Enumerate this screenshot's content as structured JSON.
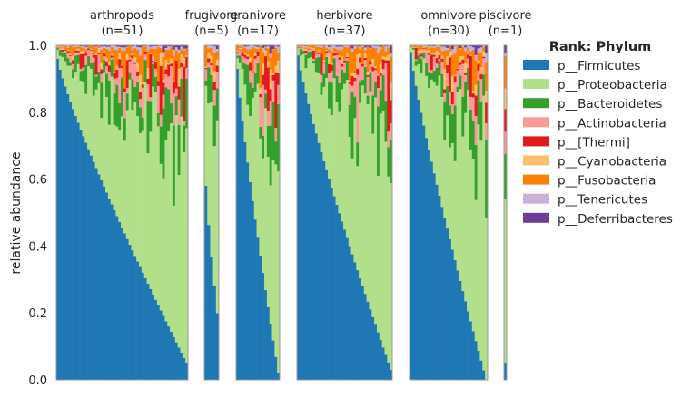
{
  "chart_data": {
    "type": "bar",
    "subtype": "stacked-100-percent, grouped panels",
    "ylabel": "relative abundance",
    "ylim": [
      0,
      1
    ],
    "yticks": [
      "0.0",
      "0.2",
      "0.4",
      "0.6",
      "0.8",
      "1.0"
    ],
    "legend": {
      "title": "Rank: Phylum",
      "placement": "right",
      "entries": [
        {
          "label": "p__Firmicutes",
          "color": "#1f77b4"
        },
        {
          "label": "p__Proteobacteria",
          "color": "#b2df8a"
        },
        {
          "label": "p__Bacteroidetes",
          "color": "#33a02c"
        },
        {
          "label": "p__Actinobacteria",
          "color": "#fb9a99"
        },
        {
          "label": "p__[Thermi]",
          "color": "#e31a1c"
        },
        {
          "label": "p__Cyanobacteria",
          "color": "#fdbf6f"
        },
        {
          "label": "p__Fusobacteria",
          "color": "#ff7f00"
        },
        {
          "label": "p__Tenericutes",
          "color": "#cab2d6"
        },
        {
          "label": "p__Deferribacteres",
          "color": "#6a3d9a"
        }
      ]
    },
    "groups": [
      {
        "name": "arthropods",
        "n_label": "(n=51)",
        "n": 51,
        "firmicutes_range": [
          0.96,
          0.05
        ]
      },
      {
        "name": "frugivore",
        "n_label": "(n=5)",
        "n": 5,
        "firmicutes_range": [
          0.58,
          0.2
        ]
      },
      {
        "name": "granivore",
        "n_label": "(n=17)",
        "n": 17,
        "firmicutes_range": [
          0.93,
          0.02
        ]
      },
      {
        "name": "herbivore",
        "n_label": "(n=37)",
        "n": 37,
        "firmicutes_range": [
          0.97,
          0.03
        ]
      },
      {
        "name": "omnivore",
        "n_label": "(n=30)",
        "n": 30,
        "firmicutes_range": [
          0.98,
          0.0
        ]
      },
      {
        "name": "piscivore",
        "n_label": "(n=1)",
        "n": 1,
        "firmicutes_range": [
          0.05,
          0.05
        ]
      }
    ]
  }
}
